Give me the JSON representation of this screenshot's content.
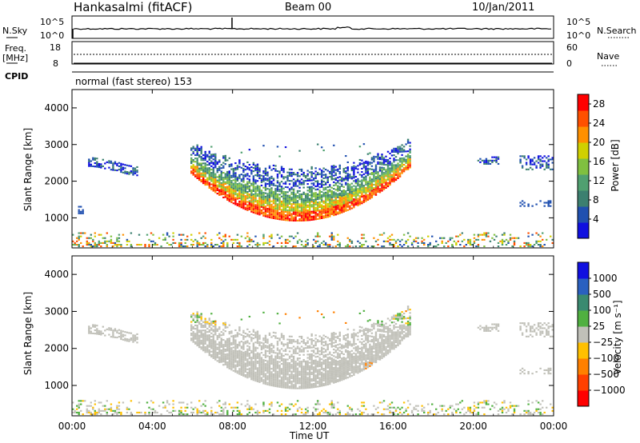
{
  "header": {
    "station": "Hankasalmi (fitACF)",
    "beam": "Beam 00",
    "date": "10/Jan/2011"
  },
  "top_strip": {
    "nsky_label": "N.Sky",
    "nsky_ticks": [
      "10^5",
      "10^0"
    ],
    "nsearch_label": "N.Search",
    "nsearch_ticks": [
      "10^5",
      "10^0"
    ],
    "freq_label": "Freq.",
    "freq_unit": "[MHz]",
    "freq_ticks": [
      "18",
      "8"
    ],
    "nave_label": "Nave",
    "nave_ticks": [
      "60",
      "0"
    ],
    "cpid_label": "CPID",
    "cpid_value": "normal (fast stereo) 153"
  },
  "colors": {
    "power_scale": [
      "#1010e0",
      "#2050b0",
      "#3c8070",
      "#50a070",
      "#80c040",
      "#d0d000",
      "#ff9000",
      "#ff5000",
      "#ff0000"
    ],
    "velocity_scale": [
      "#1010e0",
      "#2a60c0",
      "#3a8a70",
      "#50b040",
      "#c0c0b8",
      "#ffc000",
      "#ff8000",
      "#ff4000",
      "#ff0000"
    ]
  },
  "chart_data": [
    {
      "type": "heatmap",
      "name": "power",
      "ylabel": "Slant Range [km]",
      "x_ticks": [
        "00:00",
        "04:00",
        "08:00",
        "12:00",
        "16:00",
        "20:00",
        "00:00"
      ],
      "y_ticks": [
        "1000",
        "2000",
        "3000",
        "4000"
      ],
      "xlim_hours": [
        0,
        24
      ],
      "ylim_km": [
        180,
        4500
      ],
      "colorbar_label": "Power [dB]",
      "colorbar_ticks": [
        "4",
        "8",
        "12",
        "16",
        "20",
        "24",
        "28"
      ],
      "colorbar_range": [
        0,
        30
      ]
    },
    {
      "type": "heatmap",
      "name": "velocity",
      "ylabel": "Slant Range [km]",
      "xlabel": "Time UT",
      "x_ticks": [
        "00:00",
        "04:00",
        "08:00",
        "12:00",
        "16:00",
        "20:00",
        "00:00"
      ],
      "y_ticks": [
        "1000",
        "2000",
        "3000",
        "4000"
      ],
      "xlim_hours": [
        0,
        24
      ],
      "ylim_km": [
        180,
        4500
      ],
      "colorbar_label": "Velocity [m s⁻¹]",
      "colorbar_ticks": [
        "1000",
        "500",
        "100",
        "25",
        "−25",
        "−100",
        "−500",
        "−1000"
      ]
    }
  ]
}
